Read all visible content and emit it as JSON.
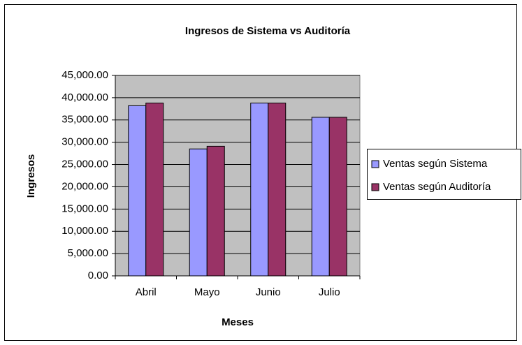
{
  "chart_data": {
    "type": "bar",
    "title": "Ingresos de Sistema vs Auditoría",
    "x_label": "Meses",
    "y_label": "Ingresos",
    "categories": [
      "Abril",
      "Mayo",
      "Junio",
      "Julio"
    ],
    "series": [
      {
        "name": "Ventas según Sistema",
        "color": "#9999ff",
        "values": [
          38200,
          28500,
          38800,
          35600
        ]
      },
      {
        "name": "Ventas según Auditoría",
        "color": "#993366",
        "values": [
          38800,
          29100,
          38800,
          35600
        ]
      }
    ],
    "ylim": [
      0,
      45000
    ],
    "yticks": [
      {
        "value": 0,
        "label": "0.00"
      },
      {
        "value": 5000,
        "label": "5,000.00"
      },
      {
        "value": 10000,
        "label": "10,000.00"
      },
      {
        "value": 15000,
        "label": "15,000.00"
      },
      {
        "value": 20000,
        "label": "20,000.00"
      },
      {
        "value": 25000,
        "label": "25,000.00"
      },
      {
        "value": 30000,
        "label": "30,000.00"
      },
      {
        "value": 35000,
        "label": "35,000.00"
      },
      {
        "value": 40000,
        "label": "40,000.00"
      },
      {
        "value": 45000,
        "label": "45,000.00"
      }
    ],
    "grid": true,
    "legend": "right"
  }
}
